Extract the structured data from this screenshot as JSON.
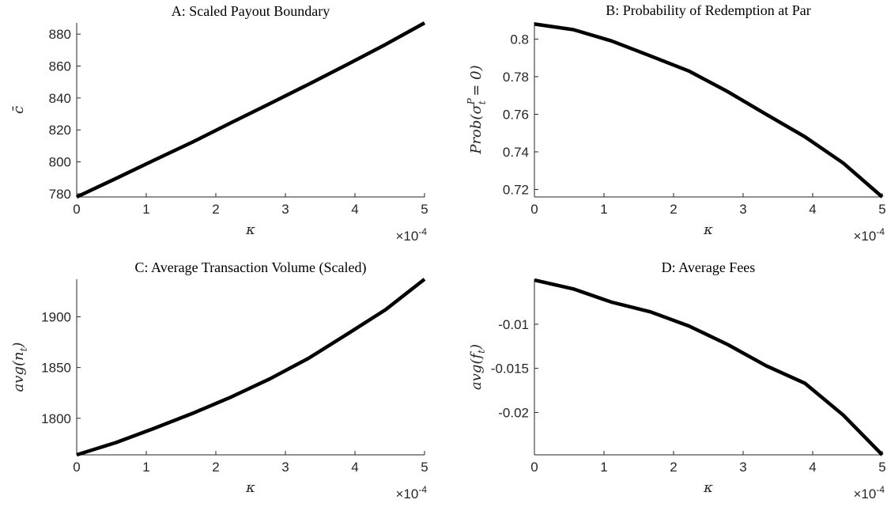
{
  "chart_data": [
    {
      "type": "line",
      "title": "A: Scaled Payout Boundary",
      "xlabel": "κ",
      "ylabel": "c̄",
      "x_multiplier": {
        "base": "×10",
        "exp": "-4"
      },
      "xlim": [
        0,
        5
      ],
      "ylim": [
        778,
        887
      ],
      "xticks": [
        0,
        1,
        2,
        3,
        4,
        5
      ],
      "yticks": [
        780,
        800,
        820,
        840,
        860,
        880
      ],
      "ytick_labels": [
        "780",
        "800",
        "820",
        "840",
        "860",
        "880"
      ],
      "x": [
        0,
        0.56,
        1.11,
        1.67,
        2.22,
        2.78,
        3.33,
        3.89,
        4.44,
        5.0
      ],
      "series": [
        {
          "values": [
            778,
            789.5,
            801,
            812.5,
            824.5,
            836.5,
            848.5,
            861,
            873.5,
            887
          ]
        }
      ]
    },
    {
      "type": "line",
      "title": "B: Probability of Redemption at Par",
      "xlabel": "κ",
      "ylabel": "Prob(σ",
      "ylabel_sub": "t",
      "ylabel_sup": "P",
      "ylabel_tail": " = 0)",
      "x_multiplier": {
        "base": "×10",
        "exp": "-4"
      },
      "xlim": [
        0,
        5
      ],
      "ylim": [
        0.716,
        0.809
      ],
      "xticks": [
        0,
        1,
        2,
        3,
        4,
        5
      ],
      "yticks": [
        0.72,
        0.74,
        0.76,
        0.78,
        0.8
      ],
      "ytick_labels": [
        "0.72",
        "0.74",
        "0.76",
        "0.78",
        "0.8"
      ],
      "x": [
        0,
        0.56,
        1.11,
        1.67,
        2.22,
        2.78,
        3.33,
        3.89,
        4.44,
        5.0
      ],
      "series": [
        {
          "values": [
            0.808,
            0.805,
            0.799,
            0.791,
            0.783,
            0.772,
            0.76,
            0.748,
            0.734,
            0.716
          ]
        }
      ]
    },
    {
      "type": "line",
      "title": "C: Average Transaction Volume (Scaled)",
      "xlabel": "κ",
      "ylabel": "avg(n",
      "ylabel_sub": "t",
      "ylabel_tail": ")",
      "x_multiplier": {
        "base": "×10",
        "exp": "-4"
      },
      "xlim": [
        0,
        5
      ],
      "ylim": [
        1764,
        1937
      ],
      "xticks": [
        0,
        1,
        2,
        3,
        4,
        5
      ],
      "yticks": [
        1800,
        1850,
        1900
      ],
      "ytick_labels": [
        "1800",
        "1850",
        "1900"
      ],
      "x": [
        0,
        0.56,
        1.11,
        1.67,
        2.22,
        2.78,
        3.33,
        3.89,
        4.44,
        5.0
      ],
      "series": [
        {
          "values": [
            1764,
            1776,
            1790,
            1805,
            1821,
            1839,
            1859,
            1883,
            1907,
            1937
          ]
        }
      ]
    },
    {
      "type": "line",
      "title": "D: Average Fees",
      "xlabel": "κ",
      "ylabel": "avg(f",
      "ylabel_sub": "t",
      "ylabel_tail": ")",
      "x_multiplier": {
        "base": "×10",
        "exp": "-4"
      },
      "xlim": [
        0,
        5
      ],
      "ylim": [
        -0.0248,
        -0.0049
      ],
      "xticks": [
        0,
        1,
        2,
        3,
        4,
        5
      ],
      "yticks": [
        -0.02,
        -0.015,
        -0.01
      ],
      "ytick_labels": [
        "-0.02",
        "-0.015",
        "-0.01"
      ],
      "x": [
        0,
        0.56,
        1.11,
        1.67,
        2.22,
        2.78,
        3.33,
        3.89,
        4.44,
        5.0
      ],
      "series": [
        {
          "values": [
            -0.005,
            -0.006,
            -0.0075,
            -0.0086,
            -0.0102,
            -0.0123,
            -0.0147,
            -0.0167,
            -0.0203,
            -0.0248
          ]
        }
      ]
    }
  ]
}
